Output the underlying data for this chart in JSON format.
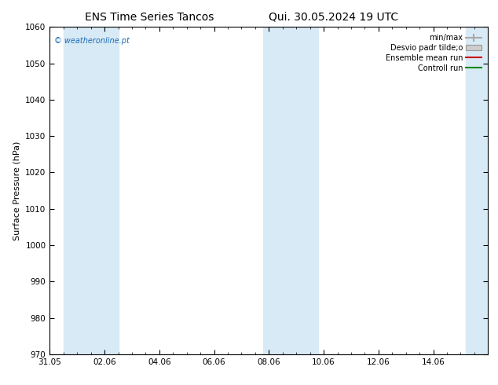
{
  "title_left": "ENS Time Series Tancos",
  "title_right": "Qui. 30.05.2024 19 UTC",
  "ylabel": "Surface Pressure (hPa)",
  "ylim": [
    970,
    1060
  ],
  "yticks": [
    970,
    980,
    990,
    1000,
    1010,
    1020,
    1030,
    1040,
    1050,
    1060
  ],
  "xlim_start": 0,
  "xlim_end": 16,
  "xtick_labels": [
    "31.05",
    "02.06",
    "04.06",
    "06.06",
    "08.06",
    "10.06",
    "12.06",
    "14.06"
  ],
  "xtick_positions": [
    0,
    2,
    4,
    6,
    8,
    10,
    12,
    14
  ],
  "shade_bands": [
    {
      "x_start": 0.5,
      "x_end": 1.5
    },
    {
      "x_start": 1.5,
      "x_end": 2.5
    },
    {
      "x_start": 7.8,
      "x_end": 8.7
    },
    {
      "x_start": 8.7,
      "x_end": 9.8
    },
    {
      "x_start": 15.2,
      "x_end": 16.0
    }
  ],
  "shade_color": "#d8eaf5",
  "figure_color": "#ffffff",
  "plot_bg_color": "#ffffff",
  "watermark": "© weatheronline.pt",
  "watermark_color": "#1a6ab5",
  "legend_items": [
    {
      "label": "min/max",
      "color": "#aaaaaa",
      "type": "errorbar"
    },
    {
      "label": "Desvio padr tilde;o",
      "color": "#cccccc",
      "type": "box"
    },
    {
      "label": "Ensemble mean run",
      "color": "#cc0000",
      "type": "line"
    },
    {
      "label": "Controll run",
      "color": "#008800",
      "type": "line"
    }
  ],
  "title_fontsize": 10,
  "tick_fontsize": 7.5,
  "ylabel_fontsize": 8,
  "legend_fontsize": 7
}
